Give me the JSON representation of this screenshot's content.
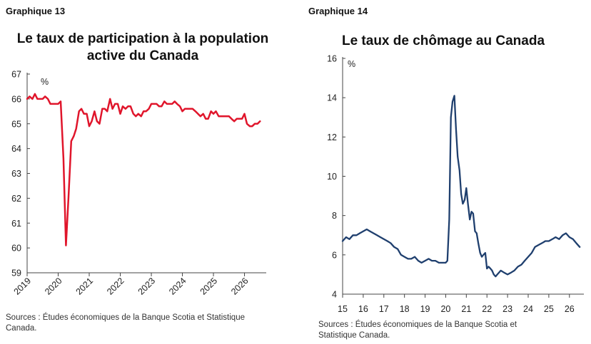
{
  "charts": [
    {
      "figure_label": "Graphique 13",
      "title_line1": "Le taux de participation à la population",
      "title_line2": "active du Canada",
      "source_line1": "Sources : Études économiques de la Banque Scotia et Statistique",
      "source_line2": "Canada."
    },
    {
      "figure_label": "Graphique 14",
      "title_line1": "Le taux de chômage au Canada",
      "source_line1": "Sources : Études économiques de la Banque Scotia et",
      "source_line2": "Statistique Canada."
    }
  ],
  "chart_data": [
    {
      "type": "line",
      "title": "Le taux de participation à la population active du Canada",
      "unit_label": "%",
      "color": "#e0152b",
      "ylim": [
        59,
        67
      ],
      "y_ticks": [
        "59",
        "60",
        "61",
        "62",
        "63",
        "64",
        "65",
        "66",
        "67"
      ],
      "xlim": [
        2019,
        2026.7
      ],
      "x_ticks": [
        2019,
        2020,
        2021,
        2022,
        2023,
        2024,
        2025,
        2026
      ],
      "x_tick_labels": [
        "2019",
        "2020",
        "2021",
        "2022",
        "2023",
        "2024",
        "2025",
        "2026"
      ],
      "grid": false,
      "series": [
        {
          "x": [
            2019.0,
            2019.08,
            2019.17,
            2019.25,
            2019.33,
            2019.42,
            2019.5,
            2019.58,
            2019.67,
            2019.75,
            2019.83,
            2019.92,
            2020.0,
            2020.08,
            2020.17,
            2020.25,
            2020.33,
            2020.42,
            2020.5,
            2020.58,
            2020.67,
            2020.75,
            2020.83,
            2020.92,
            2021.0,
            2021.08,
            2021.17,
            2021.25,
            2021.33,
            2021.42,
            2021.5,
            2021.58,
            2021.67,
            2021.75,
            2021.83,
            2021.92,
            2022.0,
            2022.08,
            2022.17,
            2022.25,
            2022.33,
            2022.42,
            2022.5,
            2022.58,
            2022.67,
            2022.75,
            2022.83,
            2022.92,
            2023.0,
            2023.08,
            2023.17,
            2023.25,
            2023.33,
            2023.42,
            2023.5,
            2023.58,
            2023.67,
            2023.75,
            2023.83,
            2023.92,
            2024.0,
            2024.08,
            2024.17,
            2024.25,
            2024.33,
            2024.42,
            2024.5,
            2024.58,
            2024.67,
            2024.75,
            2024.83,
            2024.92,
            2025.0,
            2025.08,
            2025.17,
            2025.25,
            2025.33,
            2025.42,
            2025.5,
            2025.58,
            2025.67,
            2025.75,
            2025.83,
            2025.92,
            2026.0,
            2026.08,
            2026.17,
            2026.25,
            2026.33,
            2026.42,
            2026.5
          ],
          "y": [
            66.0,
            66.1,
            66.0,
            66.2,
            66.0,
            66.0,
            66.0,
            66.1,
            66.0,
            65.8,
            65.8,
            65.8,
            65.8,
            65.9,
            63.6,
            60.1,
            62.0,
            64.3,
            64.5,
            64.8,
            65.5,
            65.6,
            65.4,
            65.4,
            64.9,
            65.1,
            65.5,
            65.1,
            65.0,
            65.6,
            65.6,
            65.5,
            66.0,
            65.6,
            65.8,
            65.8,
            65.4,
            65.7,
            65.6,
            65.7,
            65.7,
            65.4,
            65.3,
            65.4,
            65.3,
            65.5,
            65.5,
            65.6,
            65.8,
            65.8,
            65.8,
            65.7,
            65.7,
            65.9,
            65.8,
            65.8,
            65.8,
            65.9,
            65.8,
            65.7,
            65.5,
            65.6,
            65.6,
            65.6,
            65.6,
            65.5,
            65.4,
            65.3,
            65.4,
            65.2,
            65.2,
            65.5,
            65.4,
            65.5,
            65.3,
            65.3,
            65.3,
            65.3,
            65.3,
            65.2,
            65.1,
            65.2,
            65.2,
            65.2,
            65.4,
            65.0,
            64.9,
            64.9,
            65.0,
            65.0,
            65.1
          ]
        }
      ]
    },
    {
      "type": "line",
      "title": "Le taux de chômage au Canada",
      "unit_label": "%",
      "color": "#1f3f6e",
      "ylim": [
        4,
        16
      ],
      "y_ticks": [
        "4",
        "6",
        "8",
        "10",
        "12",
        "14",
        "16"
      ],
      "xlim": [
        2015,
        2026.7
      ],
      "x_ticks": [
        2015,
        2016,
        2017,
        2018,
        2019,
        2020,
        2021,
        2022,
        2023,
        2024,
        2025,
        2026
      ],
      "x_tick_labels": [
        "15",
        "16",
        "17",
        "18",
        "19",
        "20",
        "21",
        "22",
        "23",
        "24",
        "25",
        "26"
      ],
      "grid": false,
      "series": [
        {
          "x": [
            2015.0,
            2015.17,
            2015.33,
            2015.5,
            2015.67,
            2015.83,
            2016.0,
            2016.17,
            2016.33,
            2016.5,
            2016.67,
            2016.83,
            2017.0,
            2017.17,
            2017.33,
            2017.5,
            2017.67,
            2017.83,
            2018.0,
            2018.17,
            2018.33,
            2018.5,
            2018.67,
            2018.83,
            2019.0,
            2019.17,
            2019.33,
            2019.5,
            2019.67,
            2019.83,
            2020.0,
            2020.08,
            2020.17,
            2020.25,
            2020.33,
            2020.42,
            2020.5,
            2020.58,
            2020.67,
            2020.75,
            2020.83,
            2020.92,
            2021.0,
            2021.08,
            2021.17,
            2021.25,
            2021.33,
            2021.42,
            2021.5,
            2021.58,
            2021.67,
            2021.75,
            2021.83,
            2021.92,
            2022.0,
            2022.08,
            2022.17,
            2022.25,
            2022.33,
            2022.42,
            2022.5,
            2022.67,
            2022.83,
            2023.0,
            2023.17,
            2023.33,
            2023.5,
            2023.67,
            2023.83,
            2024.0,
            2024.17,
            2024.33,
            2024.5,
            2024.67,
            2024.83,
            2025.0,
            2025.17,
            2025.33,
            2025.5,
            2025.67,
            2025.83,
            2026.0,
            2026.17,
            2026.33,
            2026.5
          ],
          "y": [
            6.7,
            6.9,
            6.8,
            7.0,
            7.0,
            7.1,
            7.2,
            7.3,
            7.2,
            7.1,
            7.0,
            6.9,
            6.8,
            6.7,
            6.6,
            6.4,
            6.3,
            6.0,
            5.9,
            5.8,
            5.8,
            5.9,
            5.7,
            5.6,
            5.7,
            5.8,
            5.7,
            5.7,
            5.6,
            5.6,
            5.6,
            5.7,
            7.8,
            13.0,
            13.8,
            14.1,
            12.4,
            11.0,
            10.3,
            9.1,
            8.6,
            8.8,
            9.4,
            8.6,
            7.8,
            8.2,
            8.1,
            7.2,
            7.1,
            6.6,
            6.1,
            5.9,
            6.0,
            6.1,
            5.3,
            5.4,
            5.3,
            5.2,
            5.0,
            4.9,
            5.0,
            5.2,
            5.1,
            5.0,
            5.1,
            5.2,
            5.4,
            5.5,
            5.7,
            5.9,
            6.1,
            6.4,
            6.5,
            6.6,
            6.7,
            6.7,
            6.8,
            6.9,
            6.8,
            7.0,
            7.1,
            6.9,
            6.8,
            6.6,
            6.4
          ]
        }
      ]
    }
  ]
}
